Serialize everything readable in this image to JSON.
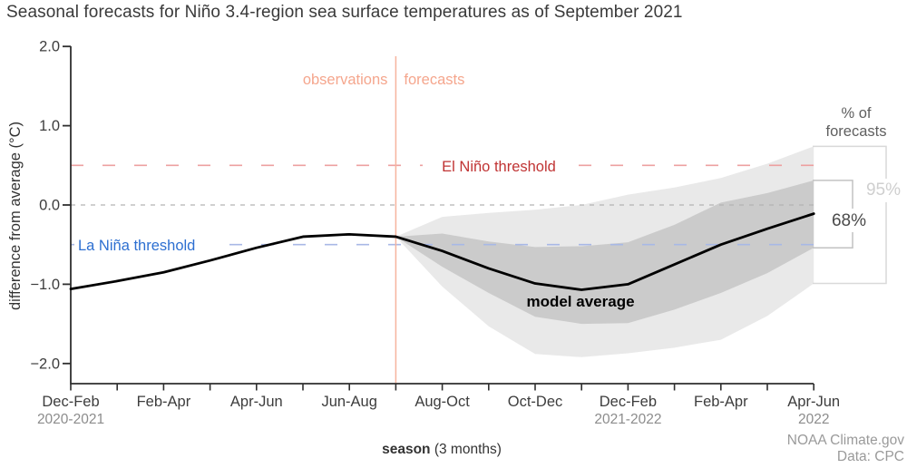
{
  "title": "Seasonal forecasts for Niño 3.4-region sea surface temperatures as of September 2021",
  "labels": {
    "observations": "observations",
    "forecasts": "forecasts",
    "el_nino_threshold": "El Niño threshold",
    "la_nina_threshold": "La Niña threshold",
    "model_average": "model average",
    "pct_header_line1": "% of",
    "pct_header_line2": "forecasts",
    "pct95": "95%",
    "pct68": "68%",
    "xlabel_bold": "season",
    "xlabel_rest": " (3 months)",
    "credit_line1": "NOAA Climate.gov",
    "credit_line2": "Data: CPC"
  },
  "colors": {
    "title_text": "#3a3a3a",
    "axis": "#2f2f2f",
    "tick_label": "#3d3d3d",
    "sub_year_label": "#8c8c8c",
    "band95_fill": "#e9e9e9",
    "band68_fill": "#cbcbcb",
    "model_line": "#000000",
    "el_nino_dash": "#eda0a0",
    "el_nino_text": "#c03434",
    "la_nina_dash": "#a8b8e6",
    "la_nina_text": "#2d6fd1",
    "zero_dash": "#b3b3b3",
    "divider_and_phase_text": "#f5a68d",
    "divider_line": "#f6b49e",
    "pct_header_text": "#5f5f5f",
    "bracket95": "#d9d9d9",
    "pct95_text": "#cfcfcf",
    "bracket68": "#c2c2c2",
    "pct68_text": "#4a4a4a",
    "credit_text": "#9a9a9a"
  },
  "chart_data": {
    "type": "line",
    "title": "Seasonal forecasts for Niño 3.4-region sea surface temperatures as of September 2021",
    "xlabel": "season (3 months)",
    "ylabel": "difference from average (°C)",
    "ylim": [
      -2.25,
      2.0
    ],
    "grid": false,
    "yticks": [
      2.0,
      1.0,
      0.0,
      -1.0,
      -2.0
    ],
    "ytick_labels": [
      "2.0",
      "1.0",
      "0.0",
      "−1.0",
      "−2.0"
    ],
    "categories": [
      {
        "label": "Dec-Feb",
        "sub": "2020-2021"
      },
      {
        "label": ""
      },
      {
        "label": "Feb-Apr"
      },
      {
        "label": ""
      },
      {
        "label": "Apr-Jun"
      },
      {
        "label": ""
      },
      {
        "label": "Jun-Aug"
      },
      {
        "label": ""
      },
      {
        "label": "Aug-Oct"
      },
      {
        "label": ""
      },
      {
        "label": "Oct-Dec"
      },
      {
        "label": ""
      },
      {
        "label": "Dec-Feb",
        "sub": "2021-2022"
      },
      {
        "label": ""
      },
      {
        "label": "Feb-Apr"
      },
      {
        "label": ""
      },
      {
        "label": "Apr-Jun",
        "sub": "2022"
      }
    ],
    "boundary_index": 7,
    "observations_label": "observations",
    "forecasts_label": "forecasts",
    "series": [
      {
        "name": "model average",
        "values": [
          -1.06,
          -0.96,
          -0.85,
          -0.7,
          -0.54,
          -0.4,
          -0.37,
          -0.4,
          -0.58,
          -0.8,
          -0.99,
          -1.07,
          -1.0,
          -0.75,
          -0.5,
          -0.3,
          -0.11
        ]
      },
      {
        "name": "68% of forecasts",
        "start_index": 7,
        "upper": [
          -0.4,
          -0.36,
          -0.46,
          -0.53,
          -0.52,
          -0.47,
          -0.25,
          0.03,
          0.15,
          0.31
        ],
        "lower": [
          -0.4,
          -0.78,
          -1.11,
          -1.41,
          -1.5,
          -1.49,
          -1.32,
          -1.11,
          -0.86,
          -0.54
        ]
      },
      {
        "name": "95% of forecasts",
        "start_index": 7,
        "upper": [
          -0.4,
          -0.15,
          -0.1,
          -0.06,
          0.0,
          0.13,
          0.22,
          0.34,
          0.52,
          0.74
        ],
        "lower": [
          -0.4,
          -1.03,
          -1.53,
          -1.88,
          -1.92,
          -1.87,
          -1.8,
          -1.7,
          -1.4,
          -0.99
        ]
      }
    ],
    "thresholds": [
      {
        "name": "El Niño threshold",
        "value": 0.5
      },
      {
        "name": "zero line",
        "value": 0.0
      },
      {
        "name": "La Niña threshold",
        "value": -0.5
      }
    ]
  }
}
